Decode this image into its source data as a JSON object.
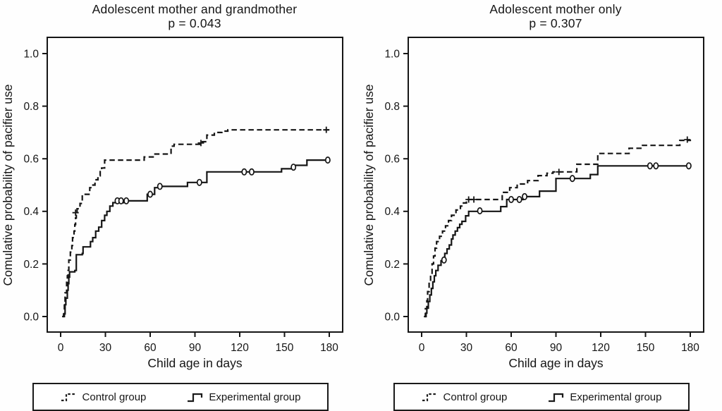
{
  "page": {
    "background": "#ffffff",
    "ink": "#151515"
  },
  "chart_data": [
    {
      "type": "line",
      "subtype": "kaplan-meier-step",
      "title": "Adolescent mother and grandmother",
      "subtitle": "p = 0.043",
      "xlabel": "Child age in days",
      "ylabel": "Comulative probability of pacifier use",
      "xlim": [
        0,
        180
      ],
      "ylim": [
        0,
        1.05
      ],
      "xticks": [
        "0",
        "30",
        "60",
        "90",
        "120",
        "150",
        "180"
      ],
      "yticks": [
        "0.0",
        "0.2",
        "0.4",
        "0.6",
        "0.8",
        "1.0"
      ],
      "grid": false,
      "legend_position": "bottom",
      "series": [
        {
          "name": "Control group",
          "line": "dashed",
          "censor_marker": "plus",
          "steps": [
            [
              1.5,
              0
            ],
            [
              2.5,
              0.05
            ],
            [
              3,
              0.09
            ],
            [
              4,
              0.13
            ],
            [
              4.5,
              0.155
            ],
            [
              5,
              0.175
            ],
            [
              5.5,
              0.215
            ],
            [
              6.5,
              0.245
            ],
            [
              7.5,
              0.27
            ],
            [
              8,
              0.3
            ],
            [
              9,
              0.325
            ],
            [
              9.5,
              0.35
            ],
            [
              10,
              0.375
            ],
            [
              10.5,
              0.395
            ],
            [
              11,
              0.41
            ],
            [
              13,
              0.43
            ],
            [
              14.5,
              0.465
            ],
            [
              19.5,
              0.49
            ],
            [
              21,
              0.5
            ],
            [
              23,
              0.52
            ],
            [
              25,
              0.535
            ],
            [
              26.5,
              0.555
            ],
            [
              27.5,
              0.565
            ],
            [
              29.5,
              0.595
            ],
            [
              56,
              0.607
            ],
            [
              62,
              0.618
            ],
            [
              74,
              0.648
            ],
            [
              76,
              0.655
            ],
            [
              95,
              0.665
            ],
            [
              98,
              0.69
            ],
            [
              103,
              0.7
            ],
            [
              108,
              0.705
            ],
            [
              112,
              0.71
            ],
            [
              180,
              0.71
            ]
          ],
          "censors": [
            [
              10,
              0.395
            ],
            [
              94,
              0.66
            ],
            [
              178,
              0.71
            ]
          ]
        },
        {
          "name": "Experimental group",
          "line": "solid",
          "censor_marker": "circle",
          "steps": [
            [
              1,
              0
            ],
            [
              2,
              0.01
            ],
            [
              3,
              0.045
            ],
            [
              3.5,
              0.07
            ],
            [
              4.5,
              0.1
            ],
            [
              5,
              0.125
            ],
            [
              5.5,
              0.15
            ],
            [
              6,
              0.17
            ],
            [
              9.5,
              0.175
            ],
            [
              10.5,
              0.235
            ],
            [
              14.5,
              0.24
            ],
            [
              15,
              0.265
            ],
            [
              20,
              0.285
            ],
            [
              21.5,
              0.3
            ],
            [
              23.5,
              0.325
            ],
            [
              25.5,
              0.34
            ],
            [
              27.5,
              0.365
            ],
            [
              29.5,
              0.385
            ],
            [
              31,
              0.4
            ],
            [
              33,
              0.42
            ],
            [
              35,
              0.433
            ],
            [
              42,
              0.44
            ],
            [
              58,
              0.465
            ],
            [
              63,
              0.49
            ],
            [
              66,
              0.495
            ],
            [
              85,
              0.51
            ],
            [
              98,
              0.55
            ],
            [
              148,
              0.562
            ],
            [
              157,
              0.575
            ],
            [
              165,
              0.595
            ],
            [
              180,
              0.597
            ]
          ],
          "censors": [
            [
              38,
              0.44
            ],
            [
              40.5,
              0.44
            ],
            [
              44,
              0.44
            ],
            [
              60,
              0.465
            ],
            [
              66.5,
              0.495
            ],
            [
              93,
              0.51
            ],
            [
              123,
              0.55
            ],
            [
              128,
              0.55
            ],
            [
              156,
              0.568
            ],
            [
              179,
              0.595
            ]
          ]
        }
      ]
    },
    {
      "type": "line",
      "subtype": "kaplan-meier-step",
      "title": "Adolescent mother only",
      "subtitle": "p = 0.307",
      "xlabel": "Child age in days",
      "ylabel": "Comulative probability of pacifier use",
      "xlim": [
        0,
        180
      ],
      "ylim": [
        0,
        1.05
      ],
      "xticks": [
        "0",
        "30",
        "60",
        "90",
        "120",
        "150",
        "180"
      ],
      "yticks": [
        "0.0",
        "0.2",
        "0.4",
        "0.6",
        "0.8",
        "1.0"
      ],
      "grid": false,
      "legend_position": "bottom",
      "series": [
        {
          "name": "Control group",
          "line": "dashed",
          "censor_marker": "plus",
          "steps": [
            [
              1.5,
              0
            ],
            [
              2.5,
              0.03
            ],
            [
              3.5,
              0.06
            ],
            [
              4,
              0.095
            ],
            [
              5,
              0.13
            ],
            [
              6,
              0.165
            ],
            [
              7,
              0.2
            ],
            [
              8,
              0.23
            ],
            [
              9,
              0.26
            ],
            [
              10,
              0.285
            ],
            [
              12,
              0.305
            ],
            [
              14,
              0.325
            ],
            [
              16,
              0.345
            ],
            [
              18,
              0.365
            ],
            [
              20,
              0.385
            ],
            [
              23,
              0.405
            ],
            [
              26,
              0.42
            ],
            [
              28,
              0.432
            ],
            [
              30,
              0.445
            ],
            [
              54,
              0.472
            ],
            [
              59,
              0.49
            ],
            [
              64,
              0.504
            ],
            [
              71,
              0.517
            ],
            [
              78,
              0.536
            ],
            [
              84,
              0.545
            ],
            [
              88,
              0.55
            ],
            [
              104,
              0.579
            ],
            [
              118,
              0.62
            ],
            [
              139,
              0.64
            ],
            [
              148,
              0.651
            ],
            [
              173,
              0.67
            ],
            [
              180,
              0.673
            ]
          ],
          "censors": [
            [
              31.5,
              0.445
            ],
            [
              35,
              0.445
            ],
            [
              92,
              0.55
            ],
            [
              178,
              0.673
            ]
          ]
        },
        {
          "name": "Experimental group",
          "line": "solid",
          "censor_marker": "circle",
          "steps": [
            [
              2,
              0
            ],
            [
              3,
              0.013
            ],
            [
              3.5,
              0.032
            ],
            [
              4.5,
              0.057
            ],
            [
              5.5,
              0.082
            ],
            [
              6.5,
              0.107
            ],
            [
              7.5,
              0.132
            ],
            [
              8.5,
              0.155
            ],
            [
              9.5,
              0.175
            ],
            [
              11,
              0.195
            ],
            [
              13,
              0.212
            ],
            [
              15.5,
              0.24
            ],
            [
              17,
              0.257
            ],
            [
              18.5,
              0.272
            ],
            [
              20,
              0.295
            ],
            [
              21,
              0.31
            ],
            [
              22.5,
              0.325
            ],
            [
              24,
              0.338
            ],
            [
              25.5,
              0.351
            ],
            [
              27,
              0.362
            ],
            [
              29.5,
              0.383
            ],
            [
              31.5,
              0.4
            ],
            [
              53,
              0.418
            ],
            [
              57,
              0.445
            ],
            [
              68,
              0.456
            ],
            [
              79,
              0.477
            ],
            [
              90,
              0.525
            ],
            [
              113,
              0.54
            ],
            [
              118,
              0.573
            ],
            [
              180,
              0.575
            ]
          ],
          "censors": [
            [
              15,
              0.215
            ],
            [
              39,
              0.402
            ],
            [
              60,
              0.445
            ],
            [
              65.5,
              0.445
            ],
            [
              69,
              0.456
            ],
            [
              101,
              0.525
            ],
            [
              153,
              0.573
            ],
            [
              157,
              0.573
            ],
            [
              179,
              0.573
            ]
          ]
        }
      ]
    }
  ]
}
